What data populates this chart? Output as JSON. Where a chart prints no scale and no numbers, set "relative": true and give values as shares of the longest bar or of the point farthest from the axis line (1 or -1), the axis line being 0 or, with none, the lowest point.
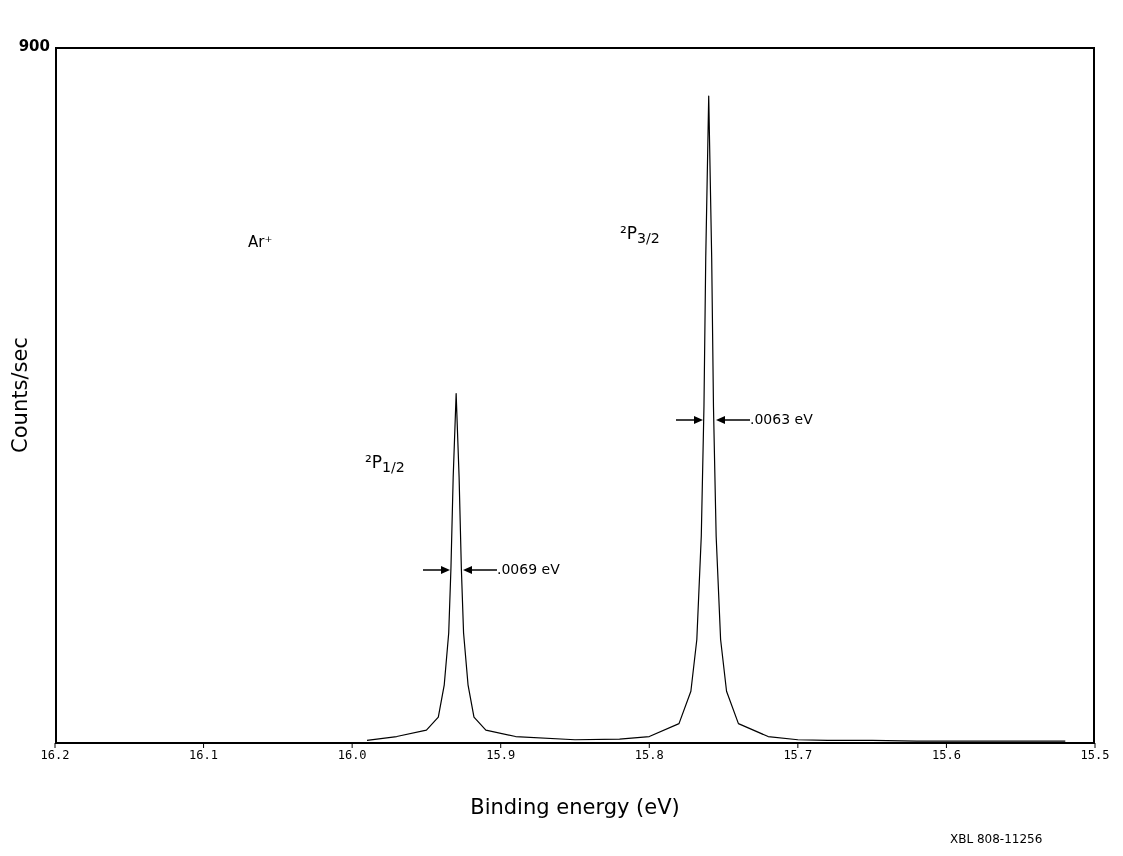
{
  "chart_data": {
    "type": "line",
    "relative": true,
    "xlabel": "Binding energy (eV)",
    "ylabel": "Counts/sec",
    "xlim": [
      16.2,
      15.5
    ],
    "xticks": [
      {
        "value": 16.2,
        "label": "16.2"
      },
      {
        "value": 16.1,
        "label": "16.1"
      },
      {
        "value": 16.0,
        "label": "16.0"
      },
      {
        "value": 15.9,
        "label": "15.9"
      },
      {
        "value": 15.8,
        "label": "15.8"
      },
      {
        "value": 15.7,
        "label": "15.7"
      },
      {
        "value": 15.6,
        "label": "15.6"
      },
      {
        "value": 15.5,
        "label": "15.5"
      }
    ],
    "grid": false,
    "series": [
      {
        "color": "#000000",
        "x": [
          15.99,
          15.97,
          15.95,
          15.942,
          15.938,
          15.935,
          15.9335,
          15.932,
          15.93,
          15.928,
          15.9265,
          15.925,
          15.922,
          15.918,
          15.91,
          15.89,
          15.85,
          15.82,
          15.8,
          15.78,
          15.772,
          15.768,
          15.765,
          15.7632,
          15.762,
          15.76,
          15.758,
          15.7568,
          15.755,
          15.752,
          15.748,
          15.74,
          15.72,
          15.7,
          15.68,
          15.66,
          15.65,
          15.62,
          15.6,
          15.57,
          15.55,
          15.52
        ],
        "values": [
          0.004,
          0.01,
          0.02,
          0.04,
          0.09,
          0.17,
          0.27,
          0.41,
          0.54,
          0.41,
          0.27,
          0.17,
          0.09,
          0.04,
          0.02,
          0.01,
          0.005,
          0.006,
          0.01,
          0.03,
          0.08,
          0.16,
          0.32,
          0.52,
          0.75,
          1,
          0.75,
          0.52,
          0.32,
          0.16,
          0.08,
          0.03,
          0.01,
          0.005,
          0.004,
          0.004,
          0.004,
          0.003,
          0.003,
          0.003,
          0.003,
          0.003
        ]
      }
    ],
    "annotations": [
      "900",
      "Ar⁺",
      "²P$_{1/2}$",
      "²P$_{3/2}$",
      ".0069 eV",
      ".0063 eV",
      "XBL 808-11256"
    ]
  }
}
